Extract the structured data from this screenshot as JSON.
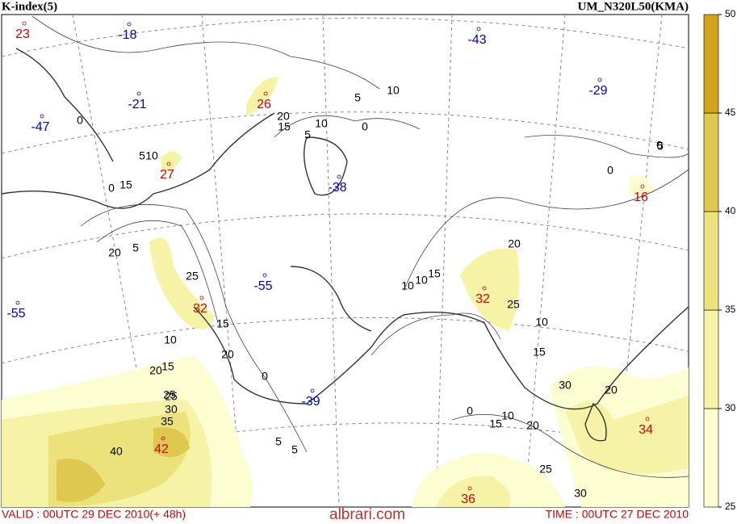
{
  "header": {
    "title": "K-index(5)",
    "model": "UM_N320L50(KMA)"
  },
  "footer": {
    "valid": "VALID : 00UTC 29 DEC 2010(+ 48h)",
    "watermark": "albrari.com",
    "time": "TIME : 00UTC 27 DEC 2010"
  },
  "colorbar": {
    "ticks": [
      25,
      30,
      35,
      40,
      45,
      50
    ],
    "colors": [
      "#fdfdd2",
      "#f7f3a6",
      "#ece27c",
      "#dfc850",
      "#d2a41c"
    ]
  },
  "highs": [
    "23",
    "26",
    "27",
    "16",
    "32",
    "32",
    "42",
    "34",
    "36"
  ],
  "lows": [
    "-18",
    "-43",
    "-29",
    "-21",
    "-47",
    "-38",
    "-55",
    "-55",
    "-39"
  ],
  "contour_labels": [
    "5",
    "10",
    "0",
    "20",
    "15",
    "5",
    "10",
    "0",
    "0",
    "5",
    "0",
    "15",
    "10",
    "5",
    "0",
    "20",
    "5",
    "25",
    "15",
    "20",
    "10",
    "15",
    "20",
    "25",
    "0",
    "5",
    "20",
    "10",
    "15",
    "25",
    "10",
    "15",
    "30",
    "20",
    "0",
    "10",
    "15",
    "20",
    "25",
    "30",
    "25",
    "30",
    "35",
    "40",
    "5",
    "10"
  ]
}
